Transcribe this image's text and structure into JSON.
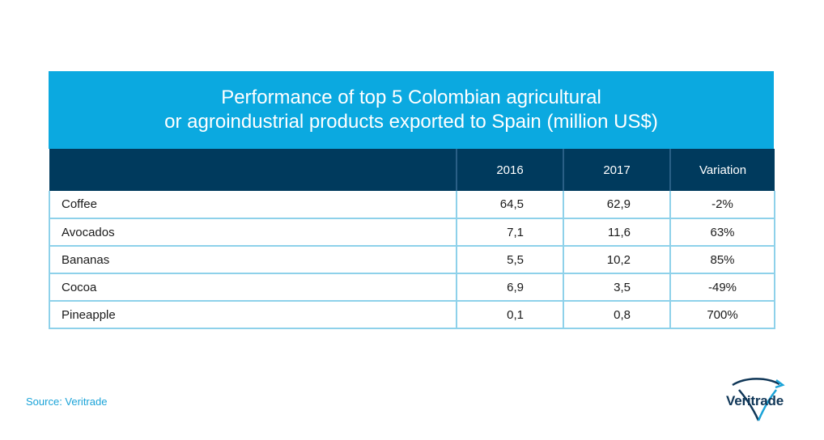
{
  "chart_data": {
    "type": "table",
    "title_lines": [
      "Performance of top 5 Colombian agricultural",
      "or agroindustrial products exported to Spain (million US$)"
    ],
    "columns": [
      "",
      "2016",
      "2017",
      "Variation"
    ],
    "rows": [
      {
        "product": "Coffee",
        "y2016": "64,5",
        "y2017": "62,9",
        "variation": "-2%"
      },
      {
        "product": "Avocados",
        "y2016": "7,1",
        "y2017": "11,6",
        "variation": "63%"
      },
      {
        "product": "Bananas",
        "y2016": "5,5",
        "y2017": "10,2",
        "variation": "85%"
      },
      {
        "product": "Cocoa",
        "y2016": "6,9",
        "y2017": "3,5",
        "variation": "-49%"
      },
      {
        "product": "Pineapple",
        "y2016": "0,1",
        "y2017": "0,8",
        "variation": "700%"
      }
    ]
  },
  "source": "Source: Veritrade",
  "logo": {
    "text": "Veritrade",
    "icon": "veritrade-swoosh-icon"
  },
  "colors": {
    "title_band": "#0ba9e0",
    "header": "#003a5d",
    "grid": "#8ed1ea",
    "source_text": "#1aa3d8",
    "logo_text": "#0f3657"
  }
}
